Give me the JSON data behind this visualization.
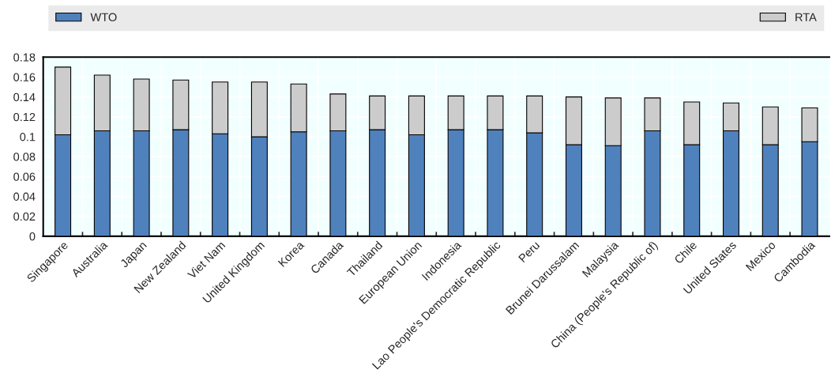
{
  "chart_data": {
    "type": "bar",
    "stacked": true,
    "categories": [
      "Singapore",
      "Australia",
      "Japan",
      "New Zealand",
      "Viet Nam",
      "United Kingdom",
      "Korea",
      "Canada",
      "Thailand",
      "European Union",
      "Indonesia",
      "Lao People's Democratic Republic",
      "Peru",
      "Brunei Darussalam",
      "Malaysia",
      "China (People's Republic of)",
      "Chile",
      "United States",
      "Mexico",
      "Cambodia"
    ],
    "series": [
      {
        "name": "WTO",
        "color": "#4f81bd",
        "values": [
          0.102,
          0.106,
          0.106,
          0.107,
          0.103,
          0.1,
          0.105,
          0.106,
          0.107,
          0.102,
          0.107,
          0.107,
          0.104,
          0.092,
          0.091,
          0.106,
          0.092,
          0.106,
          0.092,
          0.095
        ]
      },
      {
        "name": "RTA",
        "color": "#cccccc",
        "values": [
          0.068,
          0.056,
          0.052,
          0.05,
          0.052,
          0.055,
          0.048,
          0.037,
          0.034,
          0.039,
          0.034,
          0.034,
          0.037,
          0.048,
          0.048,
          0.033,
          0.043,
          0.028,
          0.038,
          0.034
        ]
      }
    ],
    "ylim": [
      0,
      0.18
    ],
    "yticks": [
      {
        "value": 0,
        "label": "0"
      },
      0.02,
      0.04,
      0.06,
      0.08,
      {
        "value": 0.1,
        "label": "0.1"
      },
      0.12,
      0.14,
      0.16,
      0.18
    ],
    "grid": true,
    "legend": "top"
  }
}
